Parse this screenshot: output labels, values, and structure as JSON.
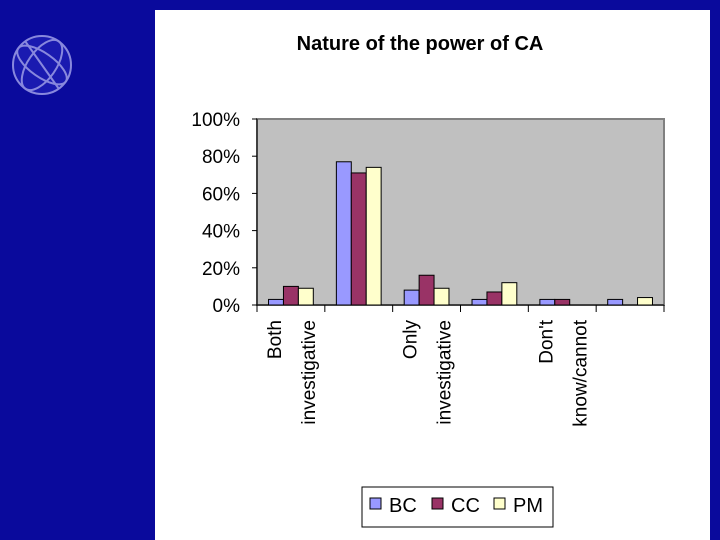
{
  "chart_data": {
    "type": "bar",
    "title": "Nature of the power of CA",
    "categories": [
      "Both investigative",
      null,
      "Only investigative",
      null,
      "Don't know/cannot",
      null
    ],
    "series": [
      {
        "name": "BC",
        "color": "#9999ff",
        "values": [
          3,
          77,
          8,
          3,
          3,
          3
        ]
      },
      {
        "name": "CC",
        "color": "#993366",
        "values": [
          10,
          71,
          16,
          7,
          3,
          0
        ]
      },
      {
        "name": "PM",
        "color": "#ffffcc",
        "values": [
          9,
          74,
          9,
          12,
          0,
          4
        ]
      }
    ],
    "ylim": [
      0,
      100
    ],
    "yticks": [
      {
        "value": 0,
        "label": "0%"
      },
      {
        "value": 20,
        "label": "20%"
      },
      {
        "value": 40,
        "label": "40%"
      },
      {
        "value": 60,
        "label": "60%"
      },
      {
        "value": 80,
        "label": "80%"
      },
      {
        "value": 100,
        "label": "100%"
      }
    ],
    "grid": false,
    "legend": "bottom"
  }
}
